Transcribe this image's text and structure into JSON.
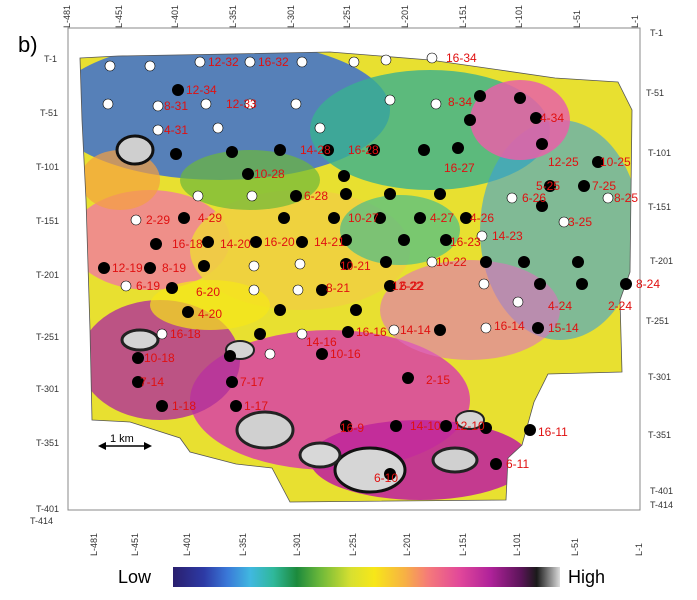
{
  "panel_label": "b)",
  "top_ticks": [
    "L-481",
    "L-451",
    "L-401",
    "L-351",
    "L-301",
    "L-251",
    "L-201",
    "L-151",
    "L-101",
    "L-51",
    "L-1"
  ],
  "bottom_ticks": [
    "L-481",
    "L-451",
    "L-401",
    "L-351",
    "L-301",
    "L-251",
    "L-201",
    "L-151",
    "L-101",
    "L-51",
    "L-1"
  ],
  "left_ticks": [
    "T-1",
    "T-51",
    "T-101",
    "T-151",
    "T-201",
    "T-251",
    "T-301",
    "T-351",
    "T-401",
    "T-414"
  ],
  "right_ticks": [
    "T-1",
    "T-51",
    "T-101",
    "T-151",
    "T-201",
    "T-251",
    "T-301",
    "T-351",
    "T-401",
    "T-414"
  ],
  "scale_bar": "1 km",
  "colorbar": {
    "low": "Low",
    "high": "High"
  },
  "well_labels": [
    "16-34",
    "12-34",
    "8-34",
    "4-34",
    "16-32",
    "12-32",
    "8-31",
    "4-31",
    "12-33",
    "16-27",
    "12-25",
    "10-25",
    "7-25",
    "5-25",
    "8-25",
    "3-25",
    "16-28",
    "14-28",
    "10-28",
    "6-28",
    "4-29",
    "2-29",
    "10-27",
    "4-27",
    "6-26",
    "4-26",
    "14-21",
    "16-23",
    "14-23",
    "16-18",
    "14-20",
    "8-19",
    "6-19",
    "12-19",
    "6-20",
    "16-20",
    "8-24",
    "4-24",
    "2-24",
    "4-20",
    "16-18",
    "10-18",
    "7-17",
    "1-17",
    "16-14",
    "15-14",
    "14-14",
    "16-16",
    "14-16",
    "10-16",
    "16-9",
    "14-10",
    "16-11",
    "12-10",
    "6-11",
    "6-10",
    "12-22",
    "10-22",
    "6-22",
    "8-21",
    "10-21",
    "2-15",
    "1-18",
    "7-14"
  ],
  "colors": {
    "well_label": "#e01010",
    "marker_filled": "#000000",
    "marker_open": "#ffffff"
  }
}
